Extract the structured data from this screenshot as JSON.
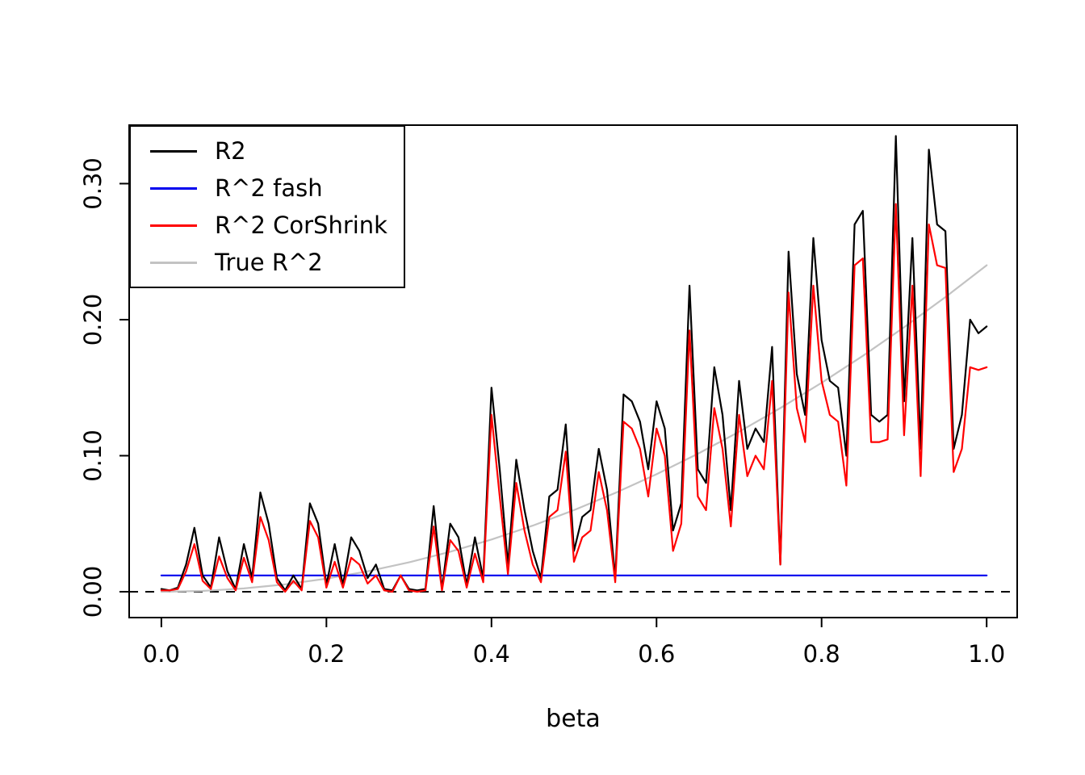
{
  "figure": {
    "background": "#ffffff"
  },
  "chart_data": {
    "type": "line",
    "title": "",
    "xlabel": "beta",
    "ylabel": "",
    "grid": false,
    "legend_position": "top-left",
    "xlim": [
      -0.039,
      1.037
    ],
    "ylim": [
      -0.019,
      0.343
    ],
    "xticks": [
      {
        "v": 0.0,
        "label": "0.0"
      },
      {
        "v": 0.2,
        "label": "0.2"
      },
      {
        "v": 0.4,
        "label": "0.4"
      },
      {
        "v": 0.6,
        "label": "0.6"
      },
      {
        "v": 0.8,
        "label": "0.8"
      },
      {
        "v": 1.0,
        "label": "1.0"
      }
    ],
    "yticks": [
      {
        "v": 0.0,
        "label": "0.00"
      },
      {
        "v": 0.1,
        "label": "0.10"
      },
      {
        "v": 0.2,
        "label": "0.20"
      },
      {
        "v": 0.3,
        "label": "0.30"
      }
    ],
    "annotations": [
      {
        "type": "hline",
        "y": 0,
        "style": "dashed",
        "color": "#000000"
      }
    ],
    "draw_order": [
      3,
      1,
      0,
      2
    ],
    "series": [
      {
        "name": "R2",
        "color": "#000000",
        "xgen": {
          "start": 0,
          "step": 0.01,
          "n": 101
        },
        "values": [
          0.002,
          0.001,
          0.003,
          0.02,
          0.047,
          0.012,
          0.003,
          0.04,
          0.015,
          0.002,
          0.035,
          0.01,
          0.073,
          0.05,
          0.01,
          0.001,
          0.012,
          0.002,
          0.065,
          0.05,
          0.005,
          0.035,
          0.005,
          0.04,
          0.03,
          0.01,
          0.02,
          0.002,
          0.001,
          0.012,
          0.002,
          0.001,
          0.002,
          0.063,
          0.002,
          0.05,
          0.04,
          0.005,
          0.04,
          0.01,
          0.15,
          0.09,
          0.02,
          0.097,
          0.06,
          0.03,
          0.01,
          0.07,
          0.075,
          0.123,
          0.03,
          0.055,
          0.06,
          0.105,
          0.075,
          0.01,
          0.145,
          0.14,
          0.125,
          0.09,
          0.14,
          0.12,
          0.045,
          0.065,
          0.225,
          0.09,
          0.08,
          0.165,
          0.13,
          0.06,
          0.155,
          0.105,
          0.12,
          0.11,
          0.18,
          0.02,
          0.25,
          0.16,
          0.13,
          0.26,
          0.185,
          0.155,
          0.15,
          0.1,
          0.27,
          0.28,
          0.13,
          0.125,
          0.13,
          0.335,
          0.14,
          0.26,
          0.105,
          0.325,
          0.27,
          0.265,
          0.105,
          0.13,
          0.2,
          0.19,
          0.195
        ]
      },
      {
        "name": "R^2 fash",
        "color": "#0000ee",
        "x": [
          0.0,
          1.0
        ],
        "values": [
          0.012,
          0.012
        ]
      },
      {
        "name": "R^2 CorShrink",
        "color": "#ff0000",
        "xgen": {
          "start": 0,
          "step": 0.01,
          "n": 101
        },
        "values": [
          0.001,
          0.001,
          0.002,
          0.015,
          0.035,
          0.008,
          0.002,
          0.026,
          0.01,
          0.001,
          0.025,
          0.007,
          0.055,
          0.038,
          0.007,
          0.0,
          0.008,
          0.001,
          0.052,
          0.04,
          0.003,
          0.022,
          0.003,
          0.025,
          0.02,
          0.006,
          0.012,
          0.001,
          0.0,
          0.012,
          0.001,
          0.0,
          0.001,
          0.048,
          0.001,
          0.038,
          0.03,
          0.003,
          0.028,
          0.007,
          0.13,
          0.07,
          0.013,
          0.08,
          0.045,
          0.02,
          0.007,
          0.055,
          0.06,
          0.103,
          0.022,
          0.04,
          0.045,
          0.088,
          0.06,
          0.007,
          0.125,
          0.12,
          0.105,
          0.07,
          0.12,
          0.1,
          0.03,
          0.05,
          0.192,
          0.07,
          0.06,
          0.135,
          0.105,
          0.048,
          0.13,
          0.085,
          0.1,
          0.09,
          0.155,
          0.02,
          0.22,
          0.135,
          0.11,
          0.225,
          0.155,
          0.13,
          0.125,
          0.078,
          0.24,
          0.245,
          0.11,
          0.11,
          0.112,
          0.285,
          0.115,
          0.225,
          0.085,
          0.27,
          0.24,
          0.238,
          0.088,
          0.105,
          0.165,
          0.163,
          0.165
        ]
      },
      {
        "name": "True R^2",
        "color": "#c3c3c3",
        "x": [
          0.0,
          0.05,
          0.1,
          0.15,
          0.2,
          0.25,
          0.3,
          0.35,
          0.4,
          0.45,
          0.5,
          0.55,
          0.6,
          0.65,
          0.7,
          0.75,
          0.8,
          0.85,
          0.9,
          0.95,
          1.0
        ],
        "values": [
          0.0,
          0.0006,
          0.0024,
          0.0054,
          0.0096,
          0.015,
          0.0216,
          0.0294,
          0.0384,
          0.0486,
          0.06,
          0.0726,
          0.0864,
          0.1014,
          0.1176,
          0.135,
          0.1536,
          0.1734,
          0.1944,
          0.2166,
          0.24
        ]
      }
    ]
  },
  "legend": {
    "items": [
      {
        "label": "R2"
      },
      {
        "label": "R^2 fash"
      },
      {
        "label": "R^2 CorShrink"
      },
      {
        "label": "True R^2"
      }
    ]
  }
}
